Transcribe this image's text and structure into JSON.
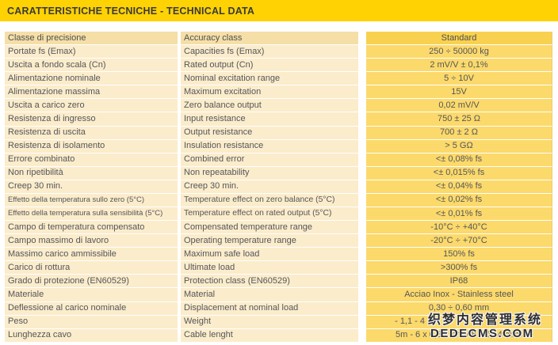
{
  "title": "CARATTERISTICHE TECNICHE - TECHNICAL DATA",
  "colors": {
    "title_bar": "#ffd204",
    "row_cream": "#fbeccb",
    "row_gold": "#fbd96b",
    "header_cream": "#f5dfa7",
    "header_gold": "#f8d150",
    "text": "#55565a"
  },
  "table": {
    "headers": {
      "it": "Classe di precisione",
      "en": "Accuracy class",
      "value": "Standard"
    },
    "rows": [
      {
        "it": "Portate fs (Emax)",
        "en": "Capacities fs (Emax)",
        "value": "250 ÷ 50000 kg"
      },
      {
        "it": "Uscita a fondo scala (Cn)",
        "en": "Rated output (Cn)",
        "value": "2 mV/V ± 0,1%"
      },
      {
        "it": "Alimentazione nominale",
        "en": "Nominal excitation range",
        "value": "5 ÷ 10V"
      },
      {
        "it": "Alimentazione massima",
        "en": "Maximum excitation",
        "value": "15V"
      },
      {
        "it": "Uscita a carico zero",
        "en": "Zero balance output",
        "value": "0,02 mV/V"
      },
      {
        "it": "Resistenza di ingresso",
        "en": "Input resistance",
        "value": "750 ± 25 Ω"
      },
      {
        "it": "Resistenza di uscita",
        "en": "Output resistance",
        "value": "700 ± 2 Ω"
      },
      {
        "it": "Resistenza di isolamento",
        "en": "Insulation resistance",
        "value": "> 5 GΩ"
      },
      {
        "it": "Errore combinato",
        "en": "Combined error",
        "value": "<± 0,08% fs"
      },
      {
        "it": "Non ripetibilità",
        "en": "Non repeatability",
        "value": "<± 0,015% fs"
      },
      {
        "it": "Creep 30 min.",
        "en": "Creep 30 min.",
        "value": "<± 0,04% fs"
      },
      {
        "it": "Effetto della temperatura sullo zero (5°C)",
        "en": "Temperature effect on zero balance (5°C)",
        "value": "<± 0,02% fs"
      },
      {
        "it": "Effetto della temperatura sulla sensibilità (5°C)",
        "en": "Temperature effect on rated output (5°C)",
        "value": "<± 0,01% fs"
      },
      {
        "it": "Campo di temperatura compensato",
        "en": "Compensated temperature range",
        "value": "-10°C ÷ +40°C"
      },
      {
        "it": "Campo massimo di lavoro",
        "en": "Operating temperature range",
        "value": "-20°C ÷ +70°C"
      },
      {
        "it": "Massimo carico ammissibile",
        "en": "Maximum safe load",
        "value": "150% fs"
      },
      {
        "it": "Carico di rottura",
        "en": "Ultimate load",
        "value": ">300% fs"
      },
      {
        "it": "Grado di protezione (EN60529)",
        "en": "Protection class (EN60529)",
        "value": "IP68"
      },
      {
        "it": "Materiale",
        "en": "Material",
        "value": "Acciao Inox - Stainless steel"
      },
      {
        "it": "Deflessione al carico nominale",
        "en": "Displacement at nominal load",
        "value": "0,30 ÷ 0,60 mm"
      },
      {
        "it": "Peso",
        "en": "Weight",
        "value": "- 1,1 - 4"
      },
      {
        "it": "Lunghezza cavo",
        "en": "Cable lenght",
        "value": "5m - 6 x 0,35 mm² / 8 x 0,14 mm²"
      }
    ]
  },
  "watermark": {
    "line1": "织梦内容管理系统",
    "line2": "DEDECMS.COM"
  }
}
